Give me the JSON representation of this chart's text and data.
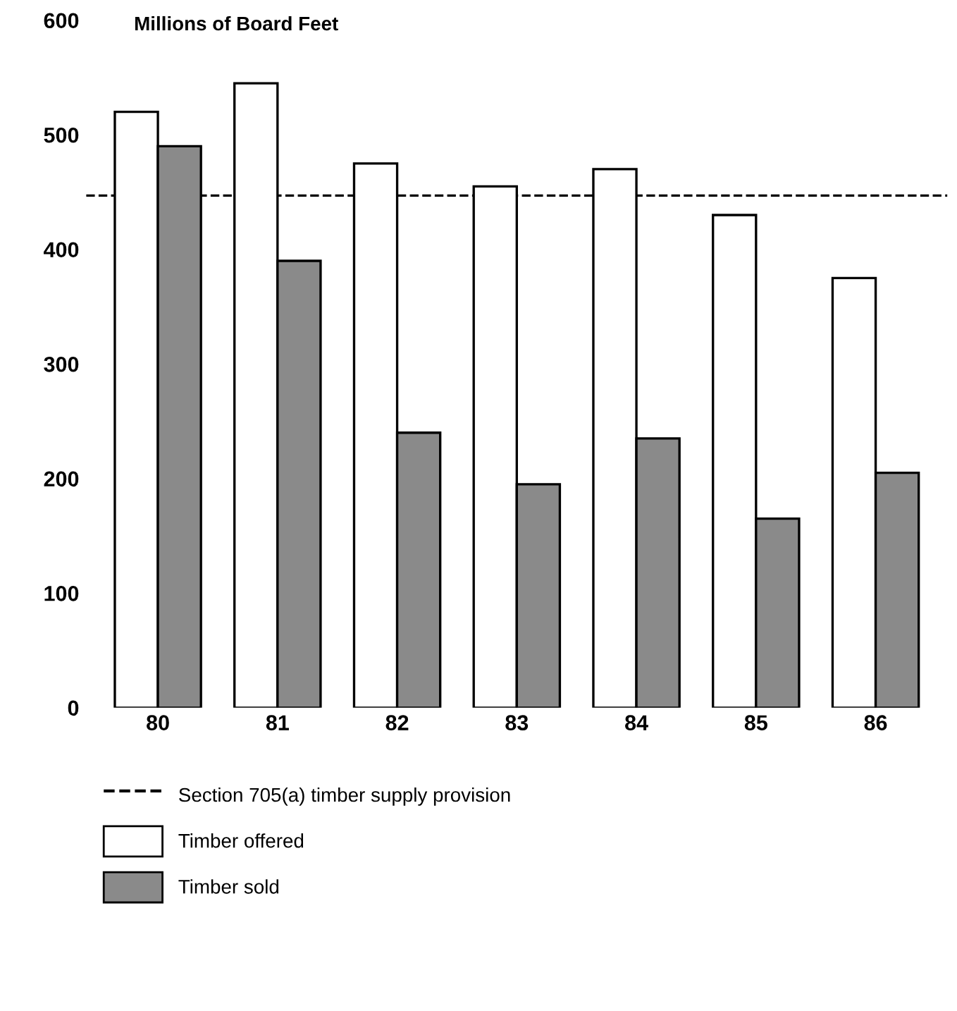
{
  "chart_data": {
    "type": "bar",
    "ylabel": "Millions of Board Feet",
    "categories": [
      "80",
      "81",
      "82",
      "83",
      "84",
      "85",
      "86"
    ],
    "series": [
      {
        "name": "Timber offered",
        "color": "#ffffff",
        "values": [
          520,
          545,
          475,
          455,
          470,
          430,
          375
        ]
      },
      {
        "name": "Timber sold",
        "color": "#8a8a8a",
        "values": [
          490,
          390,
          240,
          195,
          235,
          165,
          205
        ]
      }
    ],
    "ylim": [
      0,
      600
    ],
    "yticks": [
      0,
      100,
      200,
      300,
      400,
      500,
      600
    ],
    "ref_lines": [
      {
        "axis": "y",
        "value": 447,
        "label": "Section 705(a) timber supply provision",
        "color": "#000000",
        "line_style": "dashed"
      }
    ],
    "grid": false,
    "legend": "bottom"
  }
}
